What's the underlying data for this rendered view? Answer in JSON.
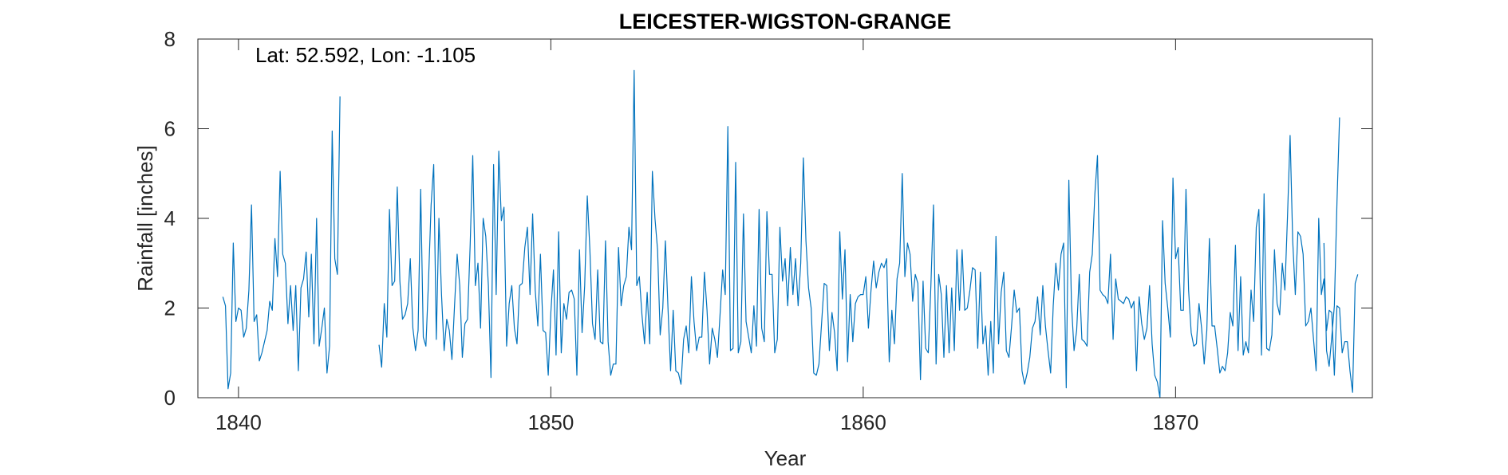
{
  "chart_data": {
    "type": "line",
    "title": "LEICESTER-WIGSTON-GRANGE",
    "xlabel": "Year",
    "ylabel": "Rainfall [inches]",
    "annotation": "Lat: 52.592, Lon: -1.105",
    "xlim": [
      1838.7,
      1876.3
    ],
    "ylim": [
      0,
      8
    ],
    "xticks": [
      1840,
      1850,
      1860,
      1870
    ],
    "yticks": [
      0,
      2,
      4,
      6,
      8
    ],
    "grid": false,
    "legend": "none",
    "line_color": "#0072BD",
    "series": [
      {
        "segments": [
          {
            "start_year": 1839.5,
            "values": [
              2.25,
              2.05,
              0.2,
              0.55,
              3.45,
              1.7,
              2.0,
              1.95,
              1.35,
              1.55,
              2.4,
              4.3,
              1.7,
              1.85,
              0.82,
              1.0,
              1.25,
              1.5,
              2.15,
              1.95,
              3.55,
              2.7,
              5.05,
              3.2,
              3.0,
              1.65,
              2.5,
              1.5,
              2.5,
              0.6,
              2.45,
              2.65,
              3.25,
              1.8,
              3.2,
              1.2,
              4.0,
              1.15,
              1.55,
              2.0,
              0.55,
              1.15,
              5.95,
              3.1,
              2.75,
              6.72
            ]
          },
          {
            "start_year": 1844.5,
            "values": [
              1.18,
              0.68,
              2.1,
              1.35,
              4.2,
              2.5,
              2.6,
              4.7,
              2.6,
              1.75,
              1.85,
              2.1,
              3.1,
              1.55,
              1.05,
              1.5,
              4.65,
              1.35,
              1.15,
              2.6,
              4.3,
              5.2,
              1.3,
              4.0,
              2.3,
              1.05,
              1.75,
              1.5,
              0.85,
              2.05,
              3.2,
              2.5,
              0.9,
              1.65,
              1.75,
              3.4,
              5.4,
              2.5,
              3.0,
              1.55,
              4.0,
              3.6,
              2.5,
              0.45,
              5.2,
              2.3,
              5.5,
              3.95,
              4.25,
              1.15,
              2.1,
              2.5,
              1.55,
              1.2,
              2.5,
              2.55,
              3.35,
              3.8,
              2.3,
              4.1,
              2.4,
              1.6,
              3.2,
              1.5,
              1.45,
              0.5,
              1.9,
              2.85,
              0.95,
              3.7,
              1.0,
              2.1,
              1.75,
              2.35,
              2.4,
              2.2,
              0.5,
              3.3,
              1.45,
              2.5,
              4.5,
              3.3,
              1.65,
              1.3,
              2.85,
              1.25,
              1.2,
              3.5,
              1.25,
              0.5,
              0.75,
              0.75,
              3.35,
              2.05,
              2.5,
              2.7,
              3.8,
              3.3,
              7.3,
              2.5,
              2.7,
              1.85,
              1.2,
              2.35,
              1.2,
              5.05,
              4.0,
              3.3,
              1.4,
              2.0,
              3.5,
              2.0,
              0.6,
              1.95,
              0.6,
              0.55,
              0.3,
              1.3,
              1.6,
              1.0,
              2.7,
              1.7,
              1.05,
              1.35,
              1.35,
              2.8,
              1.95,
              0.75,
              1.55,
              1.3,
              0.9,
              1.85,
              2.85,
              2.3,
              6.05,
              1.05,
              1.1,
              5.25,
              1.0,
              1.25,
              4.1,
              1.7,
              1.35,
              1.0,
              2.05,
              1.15,
              4.2,
              1.55,
              1.25,
              4.15,
              2.75,
              2.75,
              1.0,
              1.3,
              3.8,
              2.6,
              3.1,
              2.05,
              3.35,
              2.3,
              3.1,
              2.05,
              3.0,
              5.35,
              3.5,
              2.45,
              2.0,
              0.55,
              0.5,
              0.75,
              1.65,
              2.55,
              2.5,
              1.05,
              1.9,
              1.45,
              0.6,
              3.7,
              2.2,
              3.3,
              0.8,
              2.3,
              1.25,
              2.1,
              2.25,
              2.3,
              2.3,
              2.7,
              1.55,
              2.4,
              3.05,
              2.45,
              2.8,
              3.0,
              2.9,
              3.1,
              0.8,
              1.95,
              1.2,
              2.65,
              3.0,
              5.0,
              2.7,
              3.45,
              3.2,
              2.15,
              2.75,
              2.55,
              0.4,
              2.6,
              1.1,
              1.0,
              2.5,
              4.3,
              0.75,
              2.75,
              2.3,
              0.9,
              2.5,
              1.0,
              2.45,
              1.05,
              3.3,
              1.95,
              3.3,
              1.95,
              2.0,
              2.4,
              2.9,
              2.85,
              1.1,
              2.8,
              1.2,
              1.6,
              0.5,
              1.7,
              0.55,
              3.6,
              1.2,
              2.35,
              2.8,
              1.05,
              0.9,
              1.6,
              2.4,
              1.9,
              2.0,
              0.6,
              0.3,
              0.55,
              0.9,
              1.55,
              1.7,
              2.25,
              1.4,
              2.5,
              1.6,
              1.05,
              0.55,
              2.05,
              3.0,
              2.4,
              3.2,
              3.45,
              0.22,
              4.85,
              2.1,
              1.05,
              1.5,
              2.75,
              1.3,
              1.25,
              1.15,
              2.8,
              3.2,
              4.55,
              5.4,
              2.4,
              2.3,
              2.25,
              2.1,
              3.2,
              1.3,
              2.65,
              2.2,
              2.15,
              2.1,
              2.25,
              2.2,
              2.0,
              2.15,
              0.6,
              2.25,
              1.65,
              1.3,
              1.55,
              2.5,
              1.2,
              0.5,
              0.35,
              0.0,
              3.95,
              2.55,
              2.0,
              1.35,
              4.9,
              3.1,
              3.35,
              1.95,
              1.95,
              4.65,
              2.4,
              1.45,
              1.15,
              1.2,
              2.1,
              1.55,
              0.75,
              1.5,
              3.55,
              1.6,
              1.6,
              1.1,
              0.55,
              0.7,
              0.6,
              1.0,
              1.9,
              1.6,
              3.4,
              1.05,
              2.7,
              0.95,
              1.25,
              1.0,
              2.4,
              1.7,
              3.8,
              4.2,
              0.95,
              4.55,
              1.1,
              1.05,
              1.4,
              3.3,
              2.1,
              1.85,
              3.0,
              2.4,
              4.05,
              5.85,
              3.5,
              2.3,
              3.7,
              3.6,
              3.2,
              1.6,
              1.7,
              2.0,
              1.3,
              0.6,
              4.0,
              2.3,
              2.65,
              1.5,
              1.95,
              1.9,
              0.5,
              2.05,
              2.0,
              1.0,
              1.25,
              1.25,
              0.6,
              0.12,
              2.55,
              2.75
            ]
          },
          {
            "start_year": 1874.75,
            "values": [
              3.45,
              1.05,
              0.7,
              1.35,
              2.05,
              4.35,
              6.25
            ]
          }
        ]
      }
    ]
  }
}
